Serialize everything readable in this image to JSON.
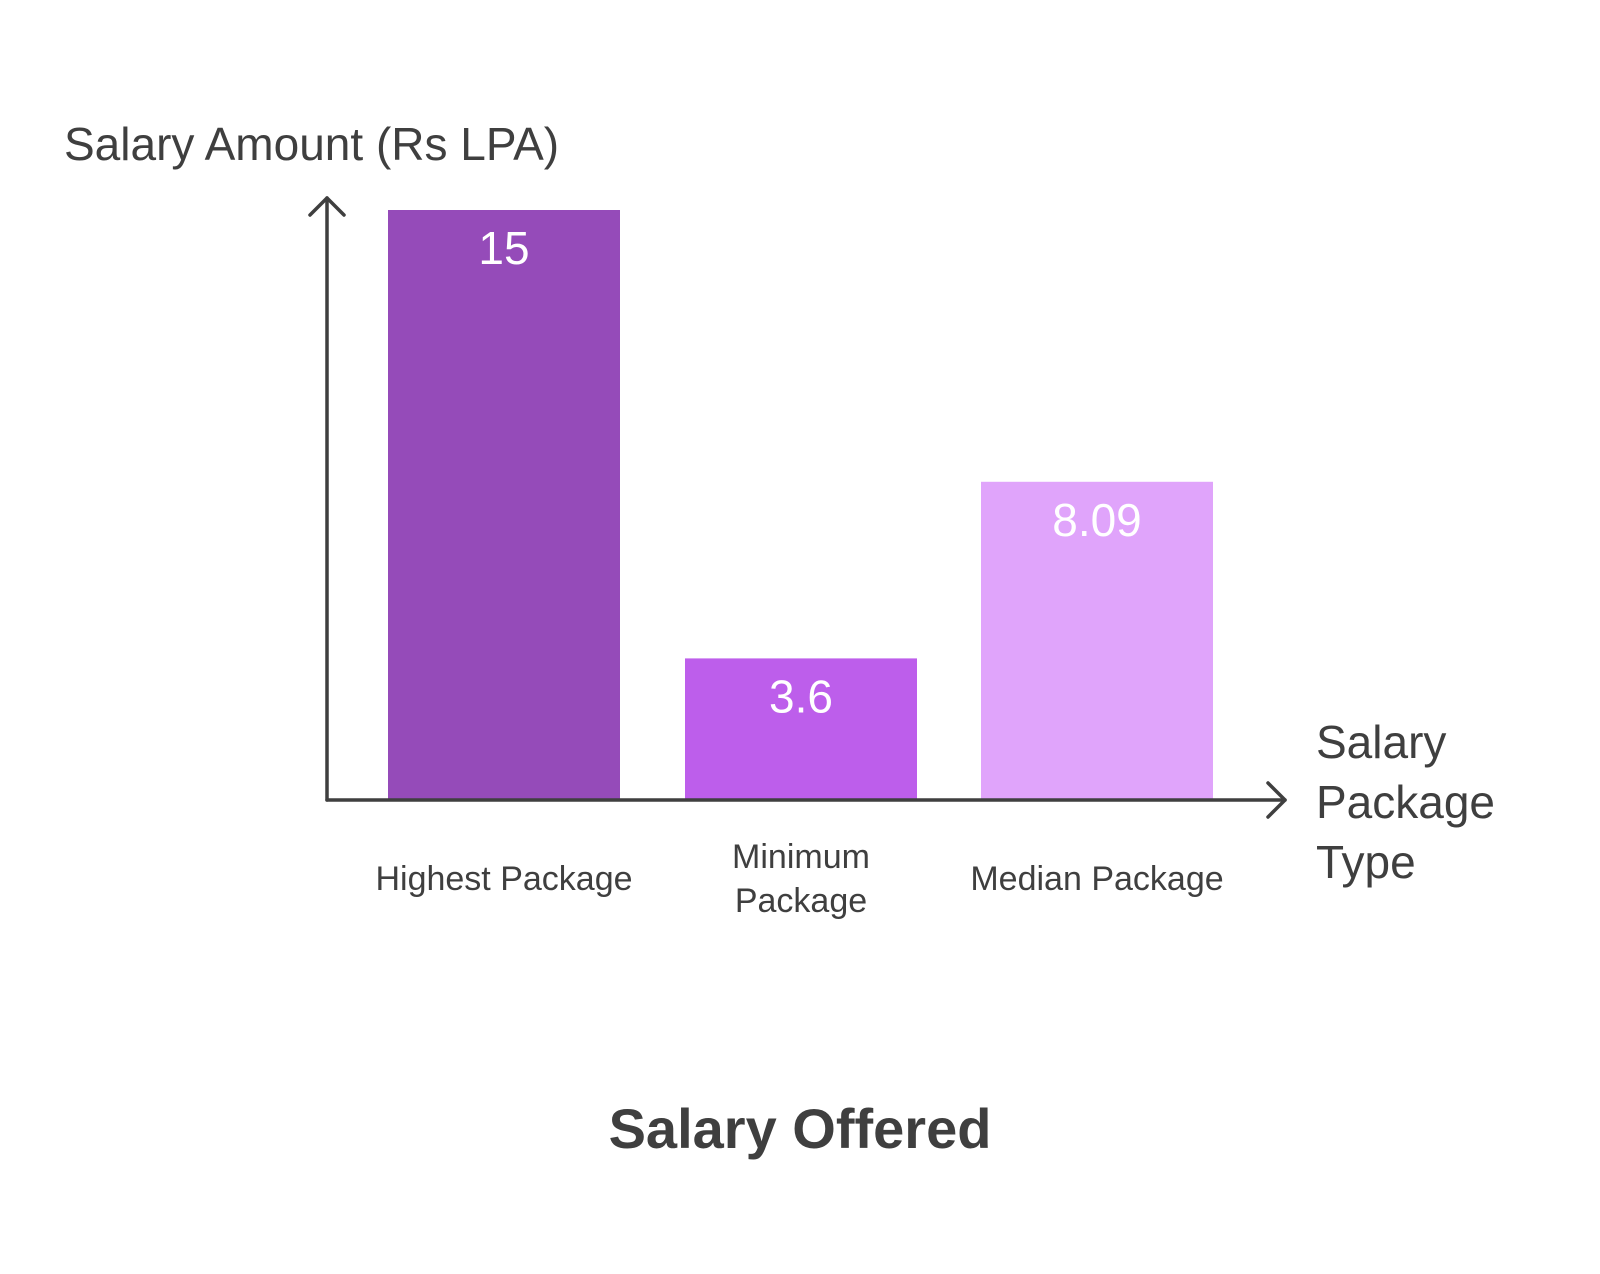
{
  "chart_data": {
    "type": "bar",
    "title": "Salary Offered",
    "ylabel": "Salary Amount (Rs LPA)",
    "xlabel": [
      "Salary",
      "Package",
      "Type"
    ],
    "categories": [
      [
        "Highest Package"
      ],
      [
        "Minimum",
        "Package"
      ],
      [
        "Median Package"
      ]
    ],
    "values": [
      15,
      3.6,
      8.09
    ],
    "value_labels": [
      "15",
      "3.6",
      "8.09"
    ],
    "colors": [
      "#954bb9",
      "#bd5eeb",
      "#e0a4fb"
    ],
    "ylim": [
      0,
      15
    ],
    "grid": false,
    "legend": "none"
  }
}
